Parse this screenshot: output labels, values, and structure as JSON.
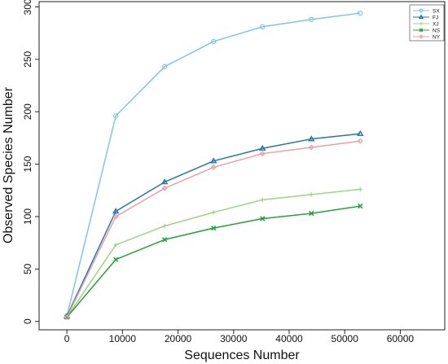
{
  "chart_data": {
    "type": "line",
    "xlabel": "Sequences Number",
    "ylabel": "Observed Species Number",
    "xlim": [
      -5000,
      68000
    ],
    "ylim": [
      -8,
      305
    ],
    "xticks": [
      0,
      10000,
      20000,
      30000,
      40000,
      50000,
      60000
    ],
    "yticks": [
      0,
      50,
      100,
      150,
      200,
      250,
      300
    ],
    "x": [
      0,
      8800,
      17600,
      26400,
      35200,
      44000,
      52800
    ],
    "legend_position": "top-right",
    "grid": false,
    "series": [
      {
        "name": "SX",
        "color": "#7ec8e3",
        "marker": "circle",
        "values": [
          5,
          196,
          243,
          267,
          281,
          288,
          294
        ]
      },
      {
        "name": "FJ",
        "color": "#1f78b4",
        "marker": "triangle",
        "values": [
          5,
          105,
          133,
          153,
          165,
          174,
          179
        ]
      },
      {
        "name": "XJ",
        "color": "#9bd87f",
        "marker": "plus",
        "values": [
          4,
          73,
          91,
          104,
          116,
          121,
          126
        ]
      },
      {
        "name": "NS",
        "color": "#1fa637",
        "marker": "cross",
        "values": [
          4,
          59,
          78,
          89,
          98,
          103,
          110
        ]
      },
      {
        "name": "NY",
        "color": "#f49ca1",
        "marker": "diamond",
        "values": [
          4,
          100,
          127,
          147,
          160,
          166,
          172
        ]
      }
    ]
  }
}
